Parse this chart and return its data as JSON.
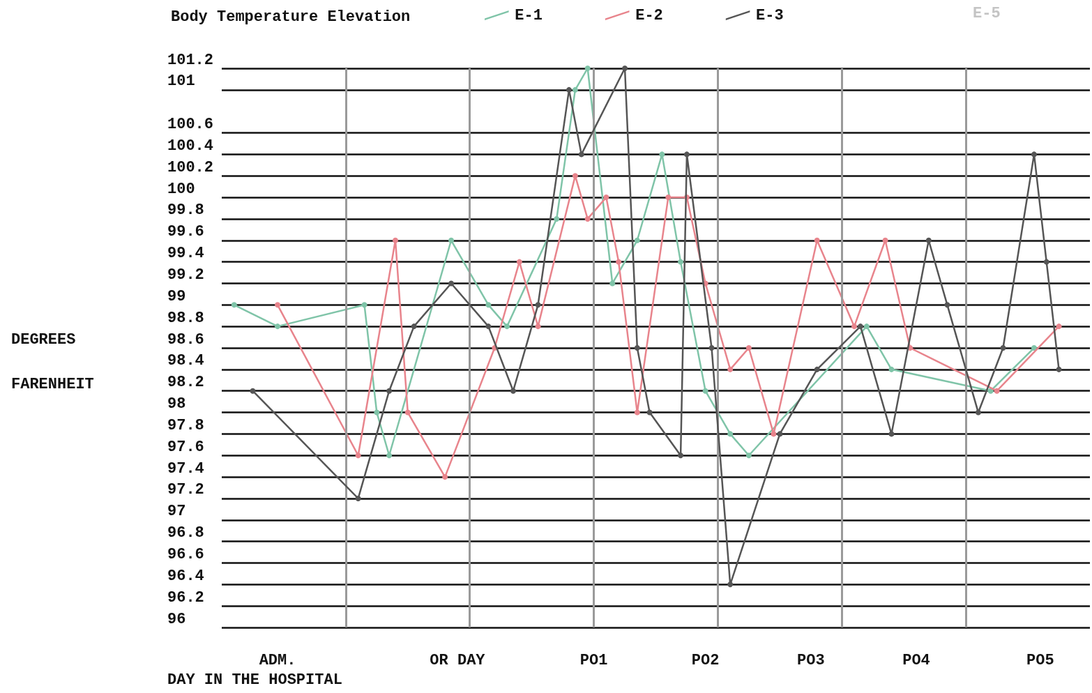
{
  "chart_data": {
    "type": "line",
    "title": "Body Temperature Elevation",
    "xlabel": "DAY IN THE HOSPITAL",
    "ylabel": "DEGREES FARENHEIT",
    "categories": [
      null,
      null,
      null,
      null,
      null,
      null,
      null,
      null,
      null,
      "ADM.",
      null,
      null,
      null,
      null,
      null,
      null,
      null,
      null,
      null,
      null,
      null,
      null,
      null,
      null,
      null,
      null,
      null,
      null,
      null,
      null,
      null,
      null,
      null,
      null,
      null,
      null,
      null,
      null,
      "OR DAY",
      null,
      null,
      null,
      null,
      null,
      null,
      null,
      null,
      null,
      null,
      null,
      null,
      null,
      null,
      null,
      null,
      null,
      null,
      null,
      null,
      null,
      "PO1",
      null,
      null,
      null,
      null,
      null,
      null,
      null,
      null,
      null,
      null,
      null,
      null,
      null,
      null,
      null,
      null,
      null,
      "PO2",
      null,
      null,
      null,
      null,
      null,
      null,
      null,
      null,
      null,
      null,
      null,
      null,
      null,
      null,
      null,
      null,
      "PO3",
      null,
      null,
      null,
      null,
      null,
      null,
      null,
      null,
      null,
      null,
      null,
      null,
      null,
      null,
      null,
      null,
      "PO4",
      null,
      null,
      null,
      null,
      null,
      null,
      null,
      null,
      null,
      null,
      null,
      null,
      null,
      null,
      null,
      null,
      null,
      null,
      null,
      "PO5",
      null,
      null,
      null,
      null,
      null,
      null,
      null,
      null
    ],
    "ylim": [
      96,
      101.2
    ],
    "yticks": [
      101.2,
      101,
      100.6,
      100.4,
      100.2,
      100,
      99.8,
      99.6,
      99.4,
      99.2,
      99,
      98.8,
      98.6,
      98.4,
      98.2,
      98,
      97.8,
      97.6,
      97.4,
      97.2,
      97,
      96.8,
      96.6,
      96.4,
      96.2,
      96
    ],
    "grid": "y",
    "legend": "top",
    "marker": "circle",
    "line_style": "solid",
    "annotations": [
      "E-5"
    ],
    "series": [
      {
        "name": "E-1",
        "color": "#7fc4a8",
        "values": [
          null,
          null,
          99.0,
          null,
          null,
          null,
          null,
          null,
          null,
          98.8,
          null,
          null,
          null,
          null,
          null,
          null,
          null,
          null,
          null,
          null,
          null,
          null,
          null,
          99.0,
          null,
          98.0,
          null,
          97.6,
          null,
          null,
          null,
          null,
          null,
          null,
          null,
          null,
          null,
          99.6,
          null,
          null,
          null,
          null,
          null,
          99.0,
          null,
          null,
          98.8,
          null,
          null,
          null,
          null,
          null,
          null,
          null,
          99.8,
          null,
          null,
          101,
          null,
          101.2,
          null,
          null,
          null,
          99.2,
          null,
          null,
          null,
          99.6,
          null,
          null,
          null,
          100.4,
          null,
          null,
          99.4,
          null,
          null,
          null,
          98.2,
          null,
          null,
          null,
          97.8,
          null,
          null,
          97.6,
          null,
          null,
          null,
          null,
          null,
          null,
          null,
          null,
          null,
          null,
          null,
          null,
          null,
          null,
          null,
          null,
          null,
          null,
          98.8,
          null,
          null,
          null,
          98.4,
          null,
          null,
          null,
          null,
          null,
          null,
          null,
          null,
          null,
          null,
          null,
          null,
          null,
          null,
          null,
          98.2,
          null,
          null,
          null,
          null,
          null,
          null,
          98.6,
          null,
          null,
          null,
          null,
          null,
          null,
          null,
          null,
          null
        ]
      },
      {
        "name": "E-2",
        "color": "#e8848c",
        "values": [
          null,
          null,
          null,
          null,
          null,
          null,
          null,
          null,
          null,
          99.0,
          null,
          null,
          null,
          null,
          null,
          null,
          null,
          null,
          null,
          null,
          null,
          null,
          97.6,
          null,
          null,
          null,
          null,
          null,
          99.6,
          null,
          98.0,
          null,
          null,
          null,
          null,
          null,
          97.4,
          null,
          null,
          null,
          null,
          null,
          null,
          null,
          98.6,
          null,
          null,
          null,
          99.4,
          null,
          null,
          98.8,
          null,
          null,
          null,
          null,
          null,
          100.2,
          null,
          99.8,
          null,
          null,
          100.0,
          null,
          99.4,
          null,
          null,
          98.0,
          null,
          null,
          null,
          null,
          100.0,
          null,
          null,
          100.0,
          null,
          null,
          99.2,
          null,
          null,
          null,
          98.4,
          null,
          null,
          98.6,
          null,
          null,
          null,
          97.8,
          null,
          null,
          null,
          null,
          null,
          null,
          99.6,
          null,
          null,
          null,
          null,
          null,
          98.8,
          null,
          null,
          null,
          null,
          99.6,
          null,
          null,
          null,
          98.6,
          null,
          null,
          null,
          null,
          null,
          null,
          null,
          null,
          null,
          null,
          null,
          null,
          null,
          98.2,
          null,
          null,
          null,
          null,
          null,
          null,
          null,
          null,
          null,
          98.8,
          null,
          null,
          null,
          null,
          null
        ]
      },
      {
        "name": "E-3",
        "color": "#555555",
        "values": [
          null,
          null,
          null,
          null,
          null,
          98.2,
          null,
          null,
          null,
          null,
          null,
          null,
          null,
          null,
          null,
          null,
          null,
          null,
          null,
          null,
          null,
          null,
          97.2,
          null,
          null,
          null,
          null,
          98.2,
          null,
          null,
          null,
          98.8,
          null,
          null,
          null,
          null,
          null,
          99.2,
          null,
          null,
          null,
          null,
          null,
          98.8,
          null,
          null,
          null,
          98.2,
          null,
          null,
          null,
          99.0,
          null,
          null,
          null,
          null,
          101,
          null,
          100.4,
          null,
          null,
          null,
          null,
          null,
          null,
          101.2,
          null,
          98.6,
          null,
          98.0,
          null,
          null,
          null,
          null,
          97.6,
          100.4,
          null,
          null,
          null,
          98.6,
          null,
          null,
          96.4,
          null,
          null,
          null,
          null,
          null,
          null,
          null,
          97.8,
          null,
          null,
          null,
          null,
          null,
          98.4,
          null,
          null,
          null,
          null,
          null,
          null,
          98.8,
          null,
          null,
          null,
          null,
          97.8,
          null,
          null,
          null,
          null,
          null,
          99.6,
          null,
          null,
          99.0,
          null,
          null,
          null,
          null,
          98.0,
          null,
          null,
          null,
          98.6,
          null,
          null,
          null,
          null,
          100.4,
          null,
          99.4,
          null,
          98.4,
          null,
          null,
          null,
          null,
          null
        ]
      }
    ]
  }
}
